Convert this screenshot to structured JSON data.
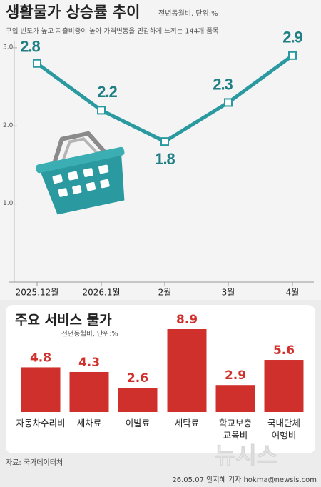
{
  "chart_data": [
    {
      "type": "line",
      "title": "생활물가 상승률 추이",
      "subtitle": "전년동월비, 단위:%",
      "note": "구입 빈도가 높고 지출비중이 높아 가격변동을 민감하게 느끼는 144개 품목",
      "categories": [
        "2025.12월",
        "2026.1월",
        "2월",
        "3월",
        "4월"
      ],
      "values": [
        2.8,
        2.2,
        1.8,
        2.3,
        2.9
      ],
      "color": "#2a9aa0",
      "ylim": [
        0,
        3.2
      ],
      "yticks": [
        {
          "value": 1,
          "label": "1.0"
        },
        {
          "value": 2,
          "label": "2.0"
        },
        {
          "value": 3,
          "label": "3.0"
        }
      ]
    },
    {
      "type": "bar",
      "title": "주요 서비스 물가",
      "subtitle": "전년동월비, 단위:%",
      "categories": [
        "자동차수리비",
        "세차료",
        "이발료",
        "세탁료",
        "학교보충\n교육비",
        "국내단체\n여행비"
      ],
      "values": [
        4.8,
        4.3,
        2.6,
        8.9,
        2.9,
        5.6
      ],
      "color": "#d0302c"
    }
  ],
  "source": "자료: 국가데이터처",
  "credit": "26.05.07 안지혜 기자 hokma@newsis.com",
  "watermark": "뉴시스"
}
